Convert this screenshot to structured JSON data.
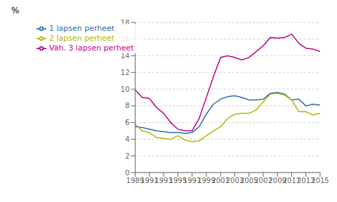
{
  "chart_data": {
    "type": "line",
    "ylabel": "%",
    "x": [
      1989,
      1990,
      1991,
      1992,
      1993,
      1994,
      1995,
      1996,
      1997,
      1998,
      1999,
      2000,
      2001,
      2002,
      2003,
      2004,
      2005,
      2006,
      2007,
      2008,
      2009,
      2010,
      2011,
      2012,
      2013,
      2014,
      2015
    ],
    "series": [
      {
        "name": "Väh. 3 lapsen perheet",
        "color": "#c0008c",
        "values": [
          9.9,
          9.0,
          8.9,
          7.8,
          7.1,
          6.0,
          5.2,
          5.0,
          5.0,
          6.5,
          9.0,
          11.5,
          13.8,
          14.0,
          13.8,
          13.5,
          13.8,
          14.5,
          15.2,
          16.2,
          16.1,
          16.2,
          16.6,
          15.5,
          14.9,
          14.8,
          14.5
        ]
      },
      {
        "name": "1 lapsen perheet",
        "color": "#2e6da4",
        "values": [
          5.5,
          5.4,
          5.2,
          5.0,
          4.9,
          4.8,
          4.8,
          4.7,
          4.8,
          5.5,
          7.0,
          8.2,
          8.8,
          9.1,
          9.2,
          9.0,
          8.7,
          8.7,
          8.8,
          9.5,
          9.6,
          9.4,
          8.7,
          8.8,
          8.0,
          8.2,
          8.1
        ]
      },
      {
        "name": "2 lapsen perheet",
        "color": "#b5b500",
        "values": [
          5.8,
          5.0,
          4.8,
          4.2,
          4.1,
          4.0,
          4.4,
          3.9,
          3.7,
          3.8,
          4.4,
          5.0,
          5.5,
          6.5,
          7.0,
          7.1,
          7.1,
          7.5,
          8.5,
          9.4,
          9.5,
          9.3,
          8.7,
          7.3,
          7.3,
          6.9,
          7.1
        ]
      }
    ],
    "xlim": [
      1989,
      2015
    ],
    "xticks": [
      1989,
      1991,
      1993,
      1995,
      1997,
      1999,
      2001,
      2003,
      2005,
      2007,
      2009,
      2011,
      2013,
      2015
    ],
    "ylim": [
      0,
      18
    ],
    "yticks": [
      0,
      2,
      4,
      6,
      8,
      10,
      12,
      14,
      16,
      18
    ],
    "grid": true,
    "legend": "top-left"
  }
}
